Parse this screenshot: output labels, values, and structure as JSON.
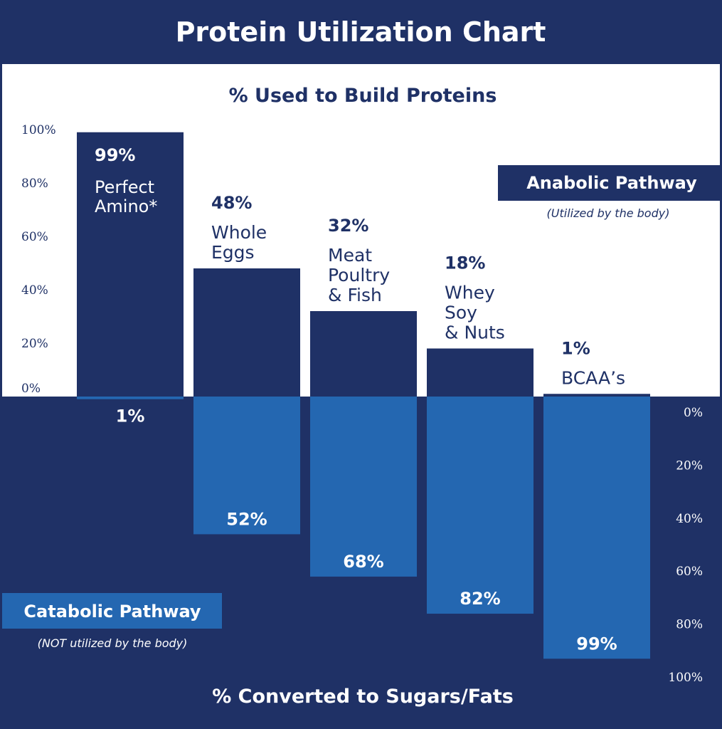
{
  "chart_data": {
    "type": "bar",
    "title": "Protein Utilization Chart",
    "top_axis_title": "% Used to Build Proteins",
    "bottom_axis_title": "% Converted to Sugars/Fats",
    "categories": [
      [
        "Perfect",
        "Amino*"
      ],
      [
        "Whole",
        "Eggs"
      ],
      [
        "Meat",
        "Poultry",
        "& Fish"
      ],
      [
        "Whey",
        "Soy",
        "& Nuts"
      ],
      [
        "BCAA’s"
      ]
    ],
    "series": [
      {
        "name": "Anabolic Pathway",
        "note": "(Utilized by the body)",
        "values": [
          99,
          48,
          32,
          18,
          1
        ],
        "labels": [
          "99%",
          "48%",
          "32%",
          "18%",
          "1%"
        ]
      },
      {
        "name": "Catabolic Pathway",
        "note": "(NOT utilized by the body)",
        "values": [
          1,
          52,
          68,
          82,
          99
        ],
        "labels": [
          "1%",
          "52%",
          "68%",
          "82%",
          "99%"
        ]
      }
    ],
    "top_ticks": [
      "100%",
      "80%",
      "60%",
      "40%",
      "20%",
      "0%"
    ],
    "bottom_ticks": [
      "0%",
      "20%",
      "40%",
      "60%",
      "80%",
      "100%"
    ],
    "ylim": [
      0,
      100
    ],
    "colors": {
      "navy": "#1f3166",
      "blue": "#2467b1",
      "white": "#ffffff"
    }
  }
}
